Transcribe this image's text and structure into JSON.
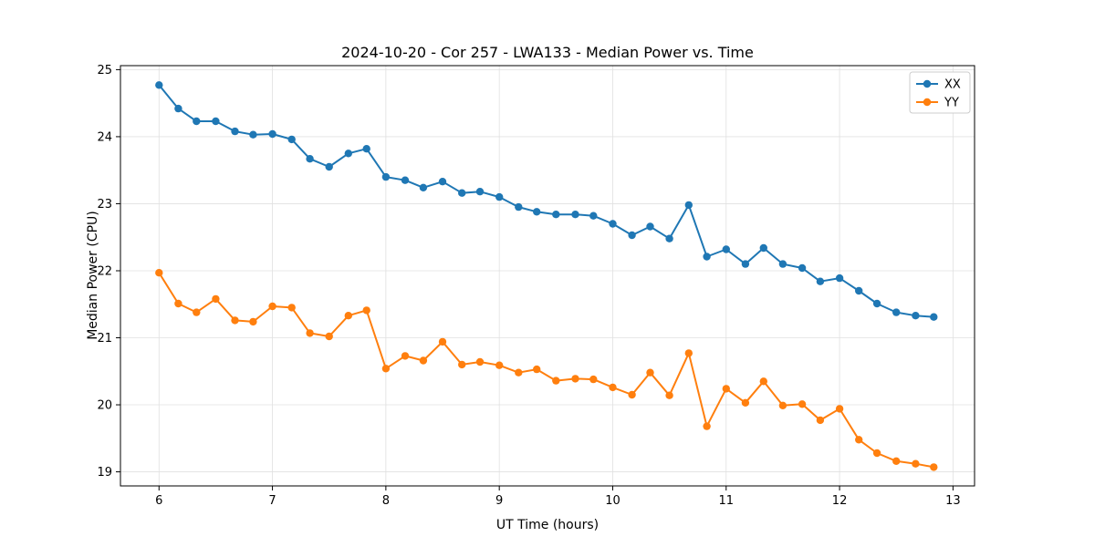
{
  "chart_data": {
    "type": "line",
    "title": "2024-10-20 - Cor 257 - LWA133 - Median Power vs. Time",
    "xlabel": "UT Time (hours)",
    "ylabel": "Median Power (CPU)",
    "xlim": [
      5.66,
      13.19
    ],
    "ylim": [
      18.79,
      25.06
    ],
    "xticks": [
      6,
      7,
      8,
      9,
      10,
      11,
      12,
      13
    ],
    "yticks": [
      19,
      20,
      21,
      22,
      23,
      24,
      25
    ],
    "grid": true,
    "legend_position": "upper right",
    "marker": "circle",
    "x": [
      6.0,
      6.17,
      6.33,
      6.5,
      6.67,
      6.83,
      7.0,
      7.17,
      7.33,
      7.5,
      7.67,
      7.83,
      8.0,
      8.17,
      8.33,
      8.5,
      8.67,
      8.83,
      9.0,
      9.17,
      9.33,
      9.5,
      9.67,
      9.83,
      10.0,
      10.17,
      10.33,
      10.5,
      10.67,
      10.83,
      11.0,
      11.17,
      11.33,
      11.5,
      11.67,
      11.83,
      12.0,
      12.17,
      12.33,
      12.5,
      12.67,
      12.83
    ],
    "series": [
      {
        "name": "XX",
        "color": "#1f77b4",
        "values": [
          24.77,
          24.42,
          24.23,
          24.23,
          24.08,
          24.03,
          24.04,
          23.96,
          23.67,
          23.55,
          23.75,
          23.82,
          23.4,
          23.35,
          23.24,
          23.33,
          23.16,
          23.18,
          23.1,
          22.95,
          22.88,
          22.84,
          22.84,
          22.82,
          22.7,
          22.53,
          22.66,
          22.48,
          22.98,
          22.21,
          22.32,
          22.1,
          22.34,
          22.1,
          22.04,
          21.84,
          21.89,
          21.7,
          21.51,
          21.38,
          21.33,
          21.31
        ]
      },
      {
        "name": "YY",
        "color": "#ff7f0e",
        "values": [
          21.97,
          21.51,
          21.38,
          21.58,
          21.26,
          21.24,
          21.47,
          21.45,
          21.07,
          21.02,
          21.33,
          21.41,
          20.54,
          20.73,
          20.66,
          20.94,
          20.6,
          20.64,
          20.59,
          20.48,
          20.53,
          20.36,
          20.39,
          20.38,
          20.26,
          20.15,
          20.48,
          20.14,
          20.77,
          19.68,
          20.24,
          20.03,
          20.35,
          19.99,
          20.01,
          19.77,
          19.94,
          19.48,
          19.28,
          19.16,
          19.12,
          19.07
        ]
      }
    ]
  }
}
